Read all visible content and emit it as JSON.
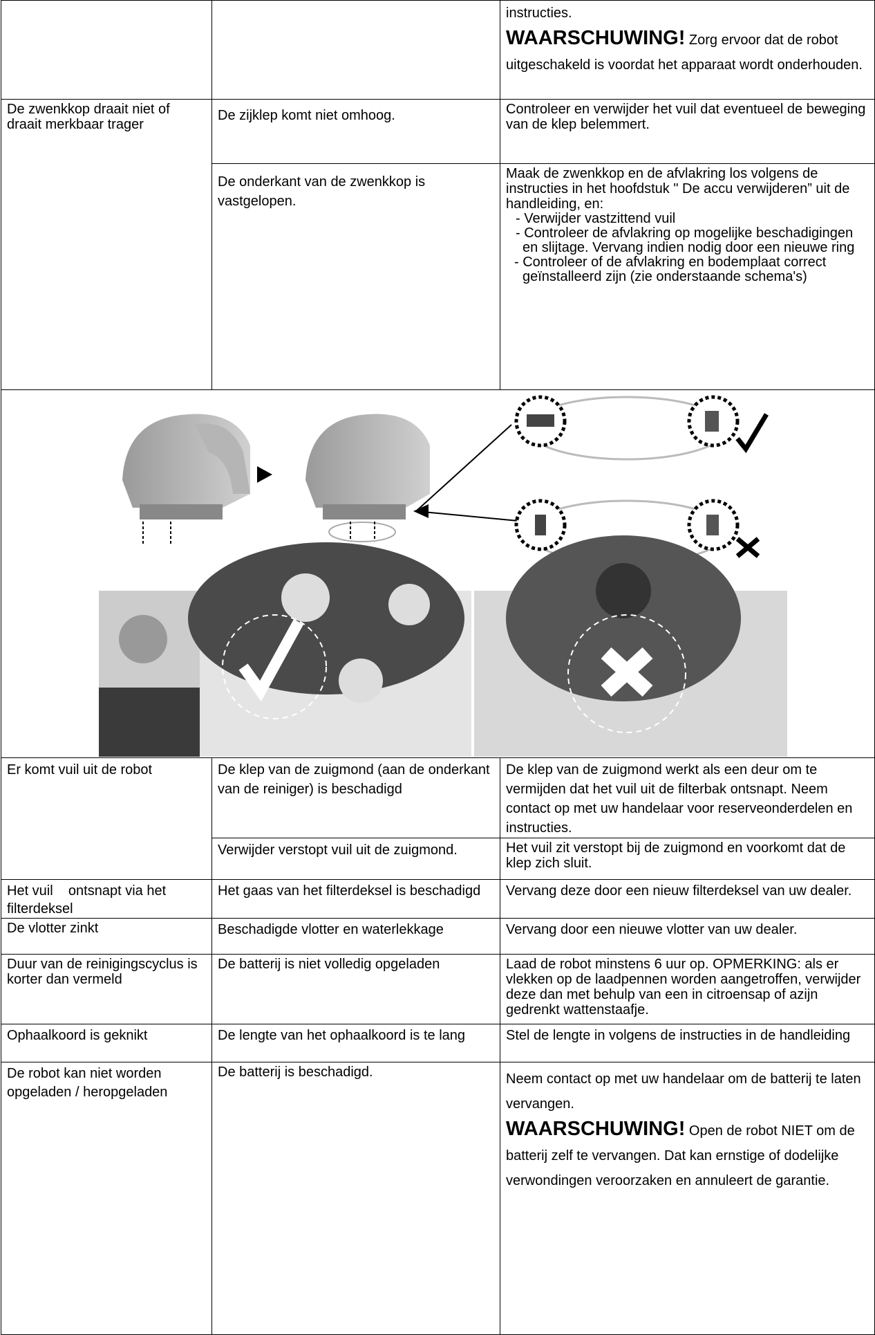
{
  "table": {
    "rows": [
      {
        "solution": {
          "text": "instructies.",
          "warning_label": "WAARSCHUWING!",
          "warning_text": "Zorg ervoor dat de robot uitgeschakeld is voordat het apparaat wordt onderhouden."
        }
      },
      {
        "problem": "De zwenkkop draait niet of draait merkbaar trager",
        "causes": [
          {
            "cause": "De zijklep komt niet omhoog.",
            "solution": "Controleer en verwijder het vuil dat eventueel de beweging van de klep belemmert."
          },
          {
            "cause": "De onderkant van de zwenkkop is vastgelopen.",
            "solution": "Maak de zwenkkop en de afvlakring los volgens de instructies in het hoofdstuk \" De accu verwijderen” uit de handleiding, en:",
            "bullets": [
              "- Verwijder vastzittend vuil",
              "- Controleer de afvlakring op mogelijke beschadigingen en slijtage. Vervang indien nodig door een nieuwe ring",
              "- Controleer of de afvlakring en bodemplaat correct geïnstalleerd zijn (zie onderstaande schema's)"
            ]
          }
        ]
      },
      {
        "problem": "Er komt vuil uit de robot",
        "causes": [
          {
            "cause": "De klep van de zuigmond (aan de onderkant van de reiniger) is beschadigd",
            "solution": "De klep van de zuigmond werkt als een deur om te vermijden dat het vuil uit de filterbak ontsnapt. Neem contact op met uw handelaar voor reserveonderdelen en instructies."
          },
          {
            "cause": "Verwijder verstopt vuil uit de zuigmond.",
            "solution": "Het vuil zit verstopt bij de zuigmond en voorkomt dat de klep zich sluit."
          }
        ]
      },
      {
        "problem": "Het vuil    ontsnapt via het filterdeksel",
        "causes": [
          {
            "cause": "Het gaas van het filterdeksel is beschadigd",
            "solution": "Vervang deze door een nieuw filterdeksel van uw dealer."
          }
        ]
      },
      {
        "problem": "De vlotter zinkt",
        "causes": [
          {
            "cause": "Beschadigde vlotter en waterlekkage",
            "solution": "Vervang door een nieuwe vlotter van uw dealer."
          }
        ]
      },
      {
        "problem": "Duur van de reinigingscyclus is korter dan vermeld",
        "causes": [
          {
            "cause": "De batterij is niet volledig opgeladen",
            "solution": "Laad de robot minstens 6 uur op. OPMERKING: als er vlekken op de laadpennen worden aangetroffen, verwijder deze dan met behulp van een in citroensap of azijn gedrenkt wattenstaafje."
          }
        ]
      },
      {
        "problem": "Ophaalkoord is geknikt",
        "causes": [
          {
            "cause": "De lengte van het ophaalkoord is te lang",
            "solution": "Stel de lengte in volgens de instructies in de handleiding"
          }
        ]
      },
      {
        "problem": "De robot kan niet worden opgeladen / heropgeladen",
        "causes": [
          {
            "cause": "De batterij is beschadigd.",
            "solution": {
              "text": "Neem contact op met uw handelaar om de batterij te laten vervangen.",
              "warning_label": "WAARSCHUWING!",
              "warning_text": "Open de robot NIET om de batterij zelf te vervangen. Dat kan ernstige of dodelijke verwondingen veroorzaken en annuleert de garantie."
            }
          }
        ]
      }
    ]
  }
}
